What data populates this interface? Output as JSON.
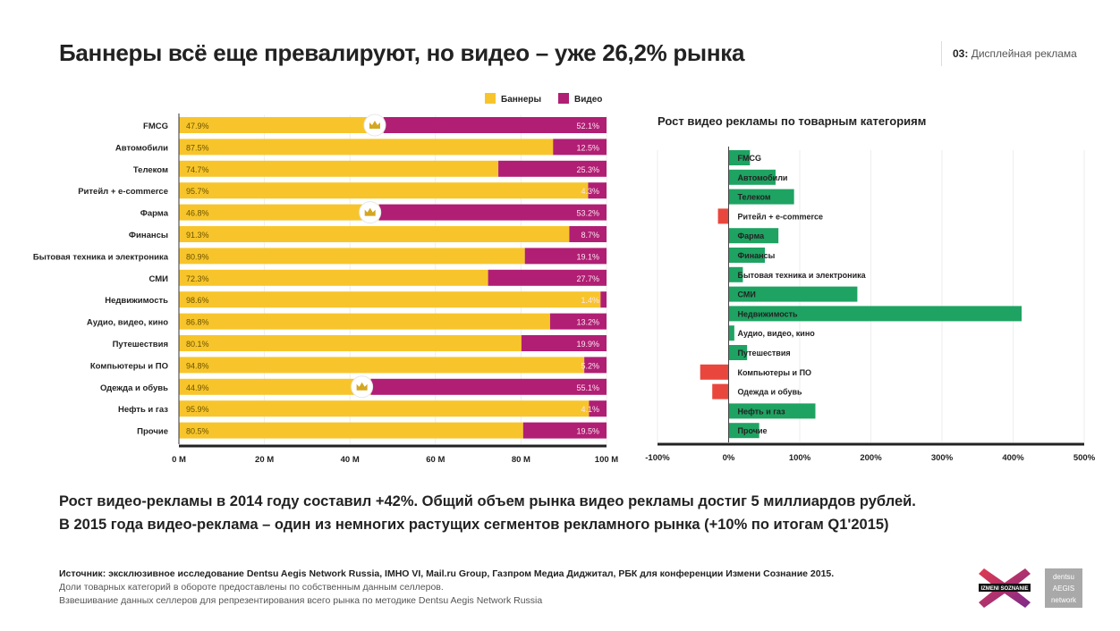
{
  "header": {
    "title": "Баннеры всё еще превалируют, но видео – уже 26,2% рынка",
    "section_number": "03:",
    "section_name": "Дисплейная реклама"
  },
  "colors": {
    "banners": "#f7c52b",
    "video": "#b01f74",
    "growth_positive": "#1ea362",
    "growth_negative": "#e9473d"
  },
  "chart_data": [
    {
      "type": "bar",
      "orientation": "horizontal-stacked",
      "title": "",
      "legend": [
        "Баннеры",
        "Видео"
      ],
      "legend_position": "top-right",
      "categories": [
        "FMCG",
        "Автомобили",
        "Телеком",
        "Ритейл + e-commerce",
        "Фарма",
        "Финансы",
        "Бытовая техника и электроника",
        "СМИ",
        "Недвижимость",
        "Аудио, видео, кино",
        "Путешествия",
        "Компьютеры и ПО",
        "Одежда и обувь",
        "Нефть и газ",
        "Прочие"
      ],
      "series": [
        {
          "name": "Баннеры",
          "values": [
            47.9,
            87.5,
            74.7,
            95.7,
            46.8,
            91.3,
            80.9,
            72.3,
            98.6,
            86.8,
            80.1,
            94.8,
            44.9,
            95.9,
            80.5
          ],
          "labels": [
            "47.9%",
            "87.5%",
            "74.7%",
            "95.7%",
            "46.8%",
            "91.3%",
            "80.9%",
            "72.3%",
            "98.6%",
            "86.8%",
            "80.1%",
            "94.8%",
            "44.9%",
            "95.9%",
            "80.5%"
          ]
        },
        {
          "name": "Видео",
          "values": [
            52.1,
            12.5,
            25.3,
            4.3,
            53.2,
            8.7,
            19.1,
            27.7,
            1.4,
            13.2,
            19.9,
            5.2,
            55.1,
            4.1,
            19.5
          ],
          "labels": [
            "52.1%",
            "12.5%",
            "25.3%",
            "4.3%",
            "53.2%",
            "8.7%",
            "19.1%",
            "27.7%",
            "1.4%",
            "13.2%",
            "19.9%",
            "5.2%",
            "55.1%",
            "4.1%",
            "19.5%"
          ]
        }
      ],
      "crown_rows": [
        "FMCG",
        "Фарма",
        "Одежда и обувь"
      ],
      "x_ticks": [
        "0 M",
        "20 M",
        "40 M",
        "60 M",
        "80 M",
        "100 M"
      ],
      "xlim": [
        0,
        100
      ],
      "grid": true
    },
    {
      "type": "bar",
      "orientation": "horizontal",
      "title": "Рост видео рекламы по товарным категориям",
      "categories": [
        "FMCG",
        "Автомобили",
        "Телеком",
        "Ритейл + e-commerce",
        "Фарма",
        "Финансы",
        "Бытовая техника и электроника",
        "СМИ",
        "Недвижимость",
        "Аудио, видео, кино",
        "Путешествия",
        "Компьютеры и ПО",
        "Одежда и обувь",
        "Нефть и газ",
        "Прочие"
      ],
      "values": [
        30,
        66,
        92,
        -15,
        70,
        51,
        20,
        181,
        412,
        8,
        26,
        -40,
        -23,
        122,
        43
      ],
      "unit": "%",
      "x_ticks": [
        "-100%",
        "0%",
        "100%",
        "200%",
        "300%",
        "400%",
        "500%"
      ],
      "xlim": [
        -100,
        500
      ],
      "grid": true
    }
  ],
  "summary": {
    "line1": "Рост видео-рекламы в 2014 году составил +42%. Общий объем рынка видео рекламы достиг 5 миллиардов рублей.",
    "line2": "В 2015 года видео-реклама – один из немногих растущих сегментов рекламного рынка (+10% по итогам Q1'2015)"
  },
  "notes": {
    "source": "Источник: эксклюзивное исследование Dentsu Aegis Network Russia, IMHO VI, Mail.ru Group, Газпром Медиа Диджитал, РБК для конференции Измени Сознание 2015.",
    "line2": "Доли товарных категорий в обороте предоставлены по собственным данным селлеров.",
    "line3": "Взвешивание данных селлеров для репрезентирования всего рынка по методике Dentsu Aegis Network Russia"
  },
  "logos": {
    "izmeni": "IZMENI SOZNANIE",
    "dentsu_line1": "dentsu",
    "dentsu_line2": "AEGIS",
    "dentsu_line3": "network"
  }
}
